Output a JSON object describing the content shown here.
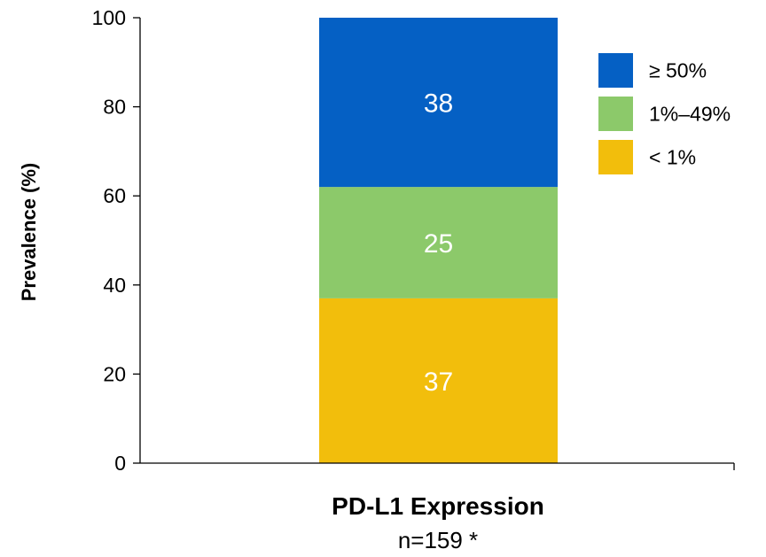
{
  "chart_data": {
    "type": "bar",
    "stacked": true,
    "categories": [
      ""
    ],
    "series": [
      {
        "name": "< 1%",
        "values": [
          37
        ],
        "color": "#F2BE0C"
      },
      {
        "name": "1%–49%",
        "values": [
          25
        ],
        "color": "#8CC96A"
      },
      {
        "name": "≥ 50%",
        "values": [
          38
        ],
        "color": "#0560C4"
      }
    ],
    "xlabel": "PD-L1 Expression",
    "subtitle": "n=159 *",
    "ylabel": "Prevalence (%)",
    "ylim": [
      0,
      100
    ],
    "yticks": [
      0,
      20,
      40,
      60,
      80,
      100
    ],
    "legend_placement": "top-right",
    "legend_order": [
      "≥ 50%",
      "1%–49%",
      "< 1%"
    ],
    "grid": false
  }
}
